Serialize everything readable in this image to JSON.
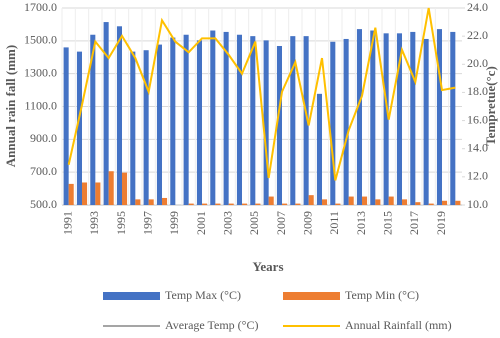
{
  "chart_data": {
    "type": "combo",
    "x_label": "Years",
    "y_label": "Annual rain fall (mm)",
    "y2_label": "Tempretue(°c)",
    "categories": [
      "1991",
      null,
      "1993",
      null,
      "1995",
      null,
      "1997",
      null,
      "1999",
      null,
      "2001",
      null,
      "2003",
      null,
      "2005",
      null,
      "2007",
      null,
      "2009",
      null,
      "2011",
      null,
      "2013",
      null,
      "2015",
      null,
      "2017",
      null,
      "2019",
      null
    ],
    "series": [
      {
        "name": "Temp  Max (°C)",
        "type": "bar",
        "axis": "y2",
        "color": "#4472c4",
        "values": [
          21.2,
          20.9,
          22.1,
          23.0,
          22.7,
          20.9,
          21.0,
          21.4,
          21.9,
          22.1,
          21.7,
          22.4,
          22.3,
          22.1,
          22.0,
          21.7,
          21.3,
          22.0,
          22.0,
          17.9,
          21.6,
          21.8,
          22.5,
          22.4,
          22.2,
          22.2,
          22.3,
          21.8,
          22.5,
          22.3
        ]
      },
      {
        "name": "Temp Min (°C)",
        "type": "bar",
        "axis": "y2",
        "color": "#ed7d31",
        "values": [
          11.5,
          11.6,
          11.6,
          12.4,
          12.3,
          10.4,
          10.4,
          10.5,
          10.0,
          10.1,
          10.1,
          10.1,
          10.1,
          10.1,
          10.1,
          10.6,
          10.1,
          10.1,
          10.7,
          10.4,
          10.1,
          10.6,
          10.6,
          10.4,
          10.6,
          10.4,
          10.2,
          10.1,
          10.3,
          10.3
        ]
      },
      {
        "name": "Average Temp (°C)",
        "type": "line",
        "axis": "y2",
        "color": "#a5a5a5",
        "values": [
          null,
          null,
          null,
          null,
          null,
          null,
          null,
          null,
          null,
          null,
          null,
          null,
          null,
          null,
          null,
          null,
          null,
          null,
          null,
          null,
          null,
          null,
          null,
          null,
          null,
          null,
          null,
          null,
          null,
          null
        ]
      },
      {
        "name": "Annual Rainfall (mm)",
        "type": "line",
        "axis": "y",
        "color": "#ffc000",
        "values": [
          745,
          1110,
          1495,
          1395,
          1530,
          1395,
          1190,
          1625,
          1495,
          1430,
          1515,
          1515,
          1415,
          1300,
          1495,
          665,
          1190,
          1370,
          985,
          1395,
          650,
          955,
          1165,
          1580,
          1020,
          1445,
          1250,
          1700,
          1200,
          1215
        ]
      }
    ],
    "ylim": [
      500,
      1700
    ],
    "yticks": [
      {
        "value": 500,
        "label": "500.0"
      },
      {
        "value": 700,
        "label": "700.0"
      },
      {
        "value": 900,
        "label": "900.0"
      },
      {
        "value": 1100,
        "label": "1100.0"
      },
      {
        "value": 1300,
        "label": "1300.0"
      },
      {
        "value": 1500,
        "label": "1500.0"
      },
      {
        "value": 1700,
        "label": "1700.0"
      }
    ],
    "y2lim": [
      10,
      24
    ],
    "y2ticks": [
      {
        "value": 10,
        "label": "10.0"
      },
      {
        "value": 12,
        "label": "12.0"
      },
      {
        "value": 14,
        "label": "14.0"
      },
      {
        "value": 16,
        "label": "16.0"
      },
      {
        "value": 18,
        "label": "18.0"
      },
      {
        "value": 20,
        "label": "20.0"
      },
      {
        "value": 22,
        "label": "22.0"
      },
      {
        "value": 24,
        "label": "24.0"
      }
    ],
    "grid": true,
    "legend": "bottom"
  }
}
